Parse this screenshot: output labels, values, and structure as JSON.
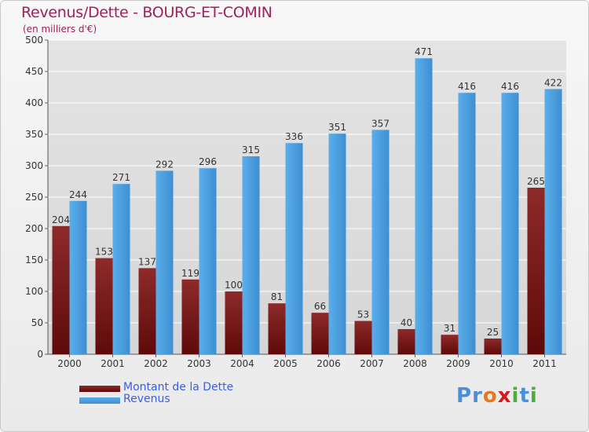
{
  "title": "Revenus/Dette - BOURG-ET-COMIN",
  "subtitle": "(en milliers d'€)",
  "colors": {
    "dette": "#7a1a1a",
    "revenus": "#4a9fe0",
    "axis_text": "#333333",
    "grid": "#ffffff",
    "title": "#a0205a",
    "legend_text": "#3b5ee0"
  },
  "legend": {
    "items": [
      {
        "label": "Montant de la Dette",
        "color": "#6b0f0f"
      },
      {
        "label": "Revenus",
        "color": "#4a9fe0"
      }
    ]
  },
  "logo": {
    "text": "Proxiti",
    "letters": [
      "P",
      "r",
      "o",
      "x",
      "i",
      "t",
      "i"
    ],
    "letter_colors": [
      "#4a90d9",
      "#4a90d9",
      "#e87722",
      "#d7191c",
      "#4cae3e",
      "#4a90d9",
      "#4cae3e"
    ]
  },
  "chart_data": {
    "type": "bar",
    "title": "Revenus/Dette - BOURG-ET-COMIN",
    "subtitle": "(en milliers d'€)",
    "xlabel": "",
    "ylabel": "",
    "ylim": [
      0,
      500
    ],
    "yticks": [
      0,
      50,
      100,
      150,
      200,
      250,
      300,
      350,
      400,
      450,
      500
    ],
    "categories": [
      "2000",
      "2001",
      "2002",
      "2003",
      "2004",
      "2005",
      "2006",
      "2007",
      "2008",
      "2009",
      "2010",
      "2011"
    ],
    "series": [
      {
        "name": "Montant de la Dette",
        "values": [
          204,
          153,
          137,
          119,
          100,
          81,
          66,
          53,
          40,
          31,
          25,
          265
        ]
      },
      {
        "name": "Revenus",
        "values": [
          244,
          271,
          292,
          296,
          315,
          336,
          351,
          357,
          471,
          416,
          416,
          422
        ]
      }
    ],
    "grid": true,
    "legend_position": "bottom-left"
  }
}
